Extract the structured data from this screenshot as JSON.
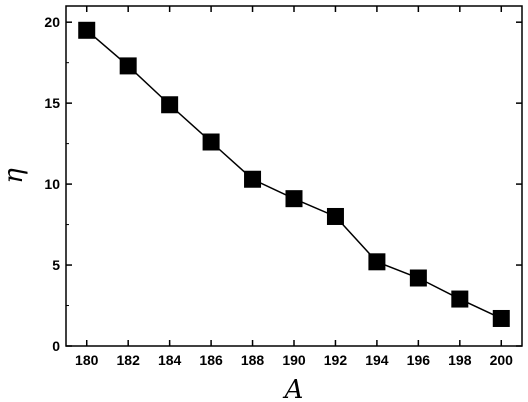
{
  "chart_data": {
    "type": "line",
    "markers": "filled-square",
    "title": "",
    "xlabel": "A",
    "ylabel": "η",
    "xlim": [
      179,
      201
    ],
    "ylim": [
      0,
      21
    ],
    "xticks": [
      180,
      182,
      184,
      186,
      188,
      190,
      192,
      194,
      196,
      198,
      200
    ],
    "yticks": [
      0,
      5,
      10,
      15,
      20
    ],
    "grid": false,
    "series": [
      {
        "x": [
          180,
          182,
          184,
          186,
          188,
          190,
          192,
          194,
          196,
          198,
          200
        ],
        "values": [
          19.5,
          17.3,
          14.9,
          12.6,
          10.3,
          9.1,
          8.0,
          5.2,
          4.2,
          2.9,
          1.7
        ]
      }
    ],
    "colors": {
      "line": "#000000",
      "marker": "#000000"
    }
  }
}
